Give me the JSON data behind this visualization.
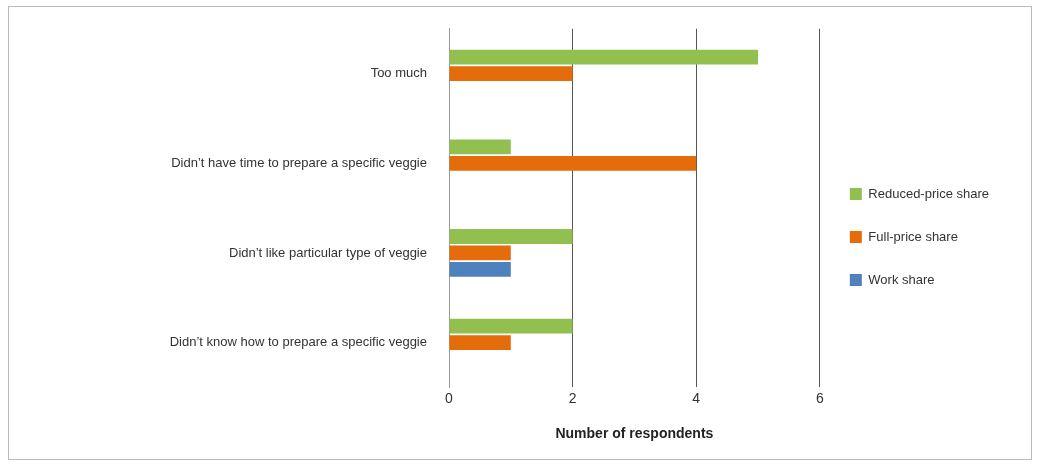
{
  "chart_data": {
    "type": "bar",
    "orientation": "horizontal",
    "xlabel": "Number of respondents",
    "categories": [
      "Too much",
      "Didn’t have time to prepare a specific veggie",
      "Didn’t like particular type of veggie",
      "Didn’t know how to prepare a specific veggie"
    ],
    "series": [
      {
        "name": "Reduced-price share",
        "color": "#92c050",
        "values": [
          5,
          1,
          2,
          2
        ]
      },
      {
        "name": "Full-price share",
        "color": "#e46c0a",
        "values": [
          2,
          4,
          1,
          1
        ]
      },
      {
        "name": "Work share",
        "color": "#4f81bd",
        "values": [
          0,
          0,
          1,
          0
        ]
      }
    ],
    "xlim": [
      0,
      6
    ],
    "xticks": [
      0,
      2,
      4,
      6
    ],
    "grid": "x",
    "legend": "right"
  }
}
